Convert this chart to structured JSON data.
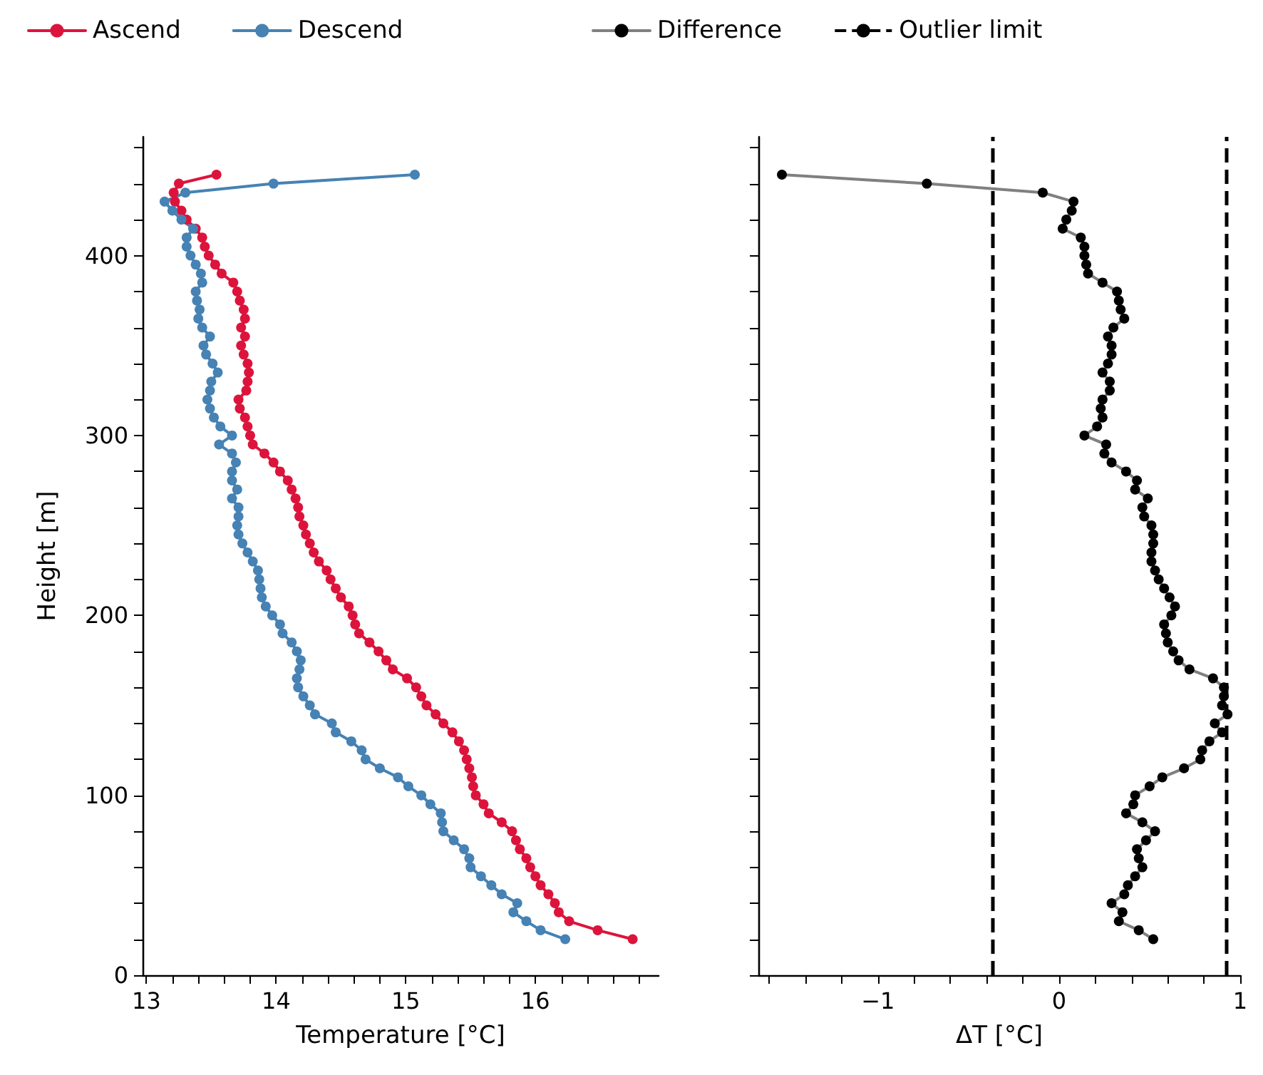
{
  "chart_data": [
    {
      "type": "line",
      "xlabel": "Temperature [°C]",
      "ylabel": "Height [m]",
      "xlim": [
        12.97,
        16.95
      ],
      "xticks": [
        13,
        {
          "value": 13.2,
          "label": null
        },
        {
          "value": 13.4,
          "label": null
        },
        {
          "value": 13.6,
          "label": null
        },
        {
          "value": 13.8,
          "label": null
        },
        14,
        {
          "value": 14.2,
          "label": null
        },
        {
          "value": 14.4,
          "label": null
        },
        {
          "value": 14.6,
          "label": null
        },
        {
          "value": 14.8,
          "label": null
        },
        15,
        {
          "value": 15.2,
          "label": null
        },
        {
          "value": 15.4,
          "label": null
        },
        {
          "value": 15.6,
          "label": null
        },
        {
          "value": 15.8,
          "label": null
        },
        16,
        {
          "value": 16.2,
          "label": null
        },
        {
          "value": 16.4,
          "label": null
        },
        {
          "value": 16.6,
          "label": null
        },
        {
          "value": 16.8,
          "label": null
        }
      ],
      "ylim": [
        0,
        466
      ],
      "yticks": [
        0,
        {
          "value": 20,
          "label": null
        },
        {
          "value": 40,
          "label": null
        },
        {
          "value": 60,
          "label": null
        },
        {
          "value": 80,
          "label": null
        },
        100,
        {
          "value": 120,
          "label": null
        },
        {
          "value": 140,
          "label": null
        },
        {
          "value": 160,
          "label": null
        },
        {
          "value": 180,
          "label": null
        },
        200,
        {
          "value": 220,
          "label": null
        },
        {
          "value": 240,
          "label": null
        },
        {
          "value": 260,
          "label": null
        },
        {
          "value": 280,
          "label": null
        },
        300,
        {
          "value": 320,
          "label": null
        },
        {
          "value": 340,
          "label": null
        },
        {
          "value": 360,
          "label": null
        },
        {
          "value": 380,
          "label": null
        },
        400,
        {
          "value": 420,
          "label": null
        },
        {
          "value": 440,
          "label": null
        },
        {
          "value": 460,
          "label": null
        }
      ],
      "legend": "top",
      "marker": "circle",
      "line_style": "solid",
      "series": [
        {
          "name": "Ascend",
          "color": "#dc143c",
          "x": [
            13.54,
            13.25,
            13.21,
            13.22,
            13.27,
            13.31,
            13.38,
            13.43,
            13.45,
            13.48,
            13.53,
            13.58,
            13.67,
            13.7,
            13.72,
            13.75,
            13.76,
            13.73,
            13.76,
            13.73,
            13.75,
            13.78,
            13.79,
            13.78,
            13.77,
            13.71,
            13.72,
            13.76,
            13.78,
            13.8,
            13.82,
            13.91,
            13.98,
            14.03,
            14.09,
            14.12,
            14.15,
            14.17,
            14.18,
            14.21,
            14.23,
            14.26,
            14.29,
            14.33,
            14.39,
            14.42,
            14.46,
            14.5,
            14.56,
            14.59,
            14.61,
            14.64,
            14.72,
            14.79,
            14.85,
            14.9,
            15.01,
            15.08,
            15.12,
            15.16,
            15.23,
            15.29,
            15.36,
            15.41,
            15.45,
            15.47,
            15.49,
            15.51,
            15.52,
            15.54,
            15.6,
            15.64,
            15.74,
            15.82,
            15.85,
            15.88,
            15.93,
            15.96,
            16.0,
            16.04,
            16.1,
            16.15,
            16.18,
            16.26,
            16.48,
            16.75
          ],
          "values": [
            445,
            440,
            435,
            430,
            425,
            420,
            415,
            410,
            405,
            400,
            395,
            390,
            385,
            380,
            375,
            370,
            365,
            360,
            355,
            350,
            345,
            340,
            335,
            330,
            325,
            320,
            315,
            310,
            305,
            300,
            295,
            290,
            285,
            280,
            275,
            270,
            265,
            260,
            255,
            250,
            245,
            240,
            235,
            230,
            225,
            220,
            215,
            210,
            205,
            200,
            195,
            190,
            185,
            180,
            175,
            170,
            165,
            160,
            155,
            150,
            145,
            140,
            135,
            130,
            125,
            120,
            115,
            110,
            105,
            100,
            95,
            90,
            85,
            80,
            75,
            70,
            65,
            60,
            55,
            50,
            45,
            40,
            35,
            30,
            25,
            20
          ]
        },
        {
          "name": "Descend",
          "color": "#4682b4",
          "x": [
            15.07,
            13.98,
            13.3,
            13.14,
            13.2,
            13.27,
            13.36,
            13.31,
            13.31,
            13.34,
            13.38,
            13.42,
            13.43,
            13.38,
            13.39,
            13.41,
            13.4,
            13.43,
            13.49,
            13.44,
            13.46,
            13.51,
            13.55,
            13.5,
            13.49,
            13.47,
            13.49,
            13.52,
            13.57,
            13.66,
            13.56,
            13.66,
            13.69,
            13.66,
            13.66,
            13.7,
            13.66,
            13.71,
            13.71,
            13.7,
            13.71,
            13.74,
            13.78,
            13.82,
            13.86,
            13.87,
            13.88,
            13.89,
            13.92,
            13.97,
            14.03,
            14.05,
            14.12,
            14.16,
            14.19,
            14.18,
            14.16,
            14.17,
            14.21,
            14.26,
            14.3,
            14.43,
            14.46,
            14.58,
            14.66,
            14.69,
            14.8,
            14.94,
            15.02,
            15.12,
            15.19,
            15.27,
            15.28,
            15.29,
            15.37,
            15.45,
            15.49,
            15.5,
            15.58,
            15.66,
            15.74,
            15.86,
            15.83,
            15.93,
            16.04,
            16.23
          ],
          "values": [
            445,
            440,
            435,
            430,
            425,
            420,
            415,
            410,
            405,
            400,
            395,
            390,
            385,
            380,
            375,
            370,
            365,
            360,
            355,
            350,
            345,
            340,
            335,
            330,
            325,
            320,
            315,
            310,
            305,
            300,
            295,
            290,
            285,
            280,
            275,
            270,
            265,
            260,
            255,
            250,
            245,
            240,
            235,
            230,
            225,
            220,
            215,
            210,
            205,
            200,
            195,
            190,
            185,
            180,
            175,
            170,
            165,
            160,
            155,
            150,
            145,
            140,
            135,
            130,
            125,
            120,
            115,
            110,
            105,
            100,
            95,
            90,
            85,
            80,
            75,
            70,
            65,
            60,
            55,
            50,
            45,
            40,
            35,
            30,
            25,
            20
          ]
        }
      ]
    },
    {
      "type": "line",
      "xlabel": "ΔT [°C]",
      "xlim": [
        -1.66,
        1.0
      ],
      "xticks": [
        {
          "value": -1.6,
          "label": null
        },
        {
          "value": -1.4,
          "label": null
        },
        {
          "value": -1.2,
          "label": null
        },
        {
          "value": -1,
          "label": "−1"
        },
        {
          "value": -0.8,
          "label": null
        },
        {
          "value": -0.6,
          "label": null
        },
        {
          "value": -0.4,
          "label": null
        },
        {
          "value": -0.2,
          "label": null
        },
        0,
        {
          "value": 0.2,
          "label": null
        },
        {
          "value": 0.4,
          "label": null
        },
        {
          "value": 0.6,
          "label": null
        },
        {
          "value": 0.8,
          "label": null
        },
        1
      ],
      "ylim": [
        0,
        466
      ],
      "yticks": [
        0,
        {
          "value": 20,
          "label": null
        },
        {
          "value": 40,
          "label": null
        },
        {
          "value": 60,
          "label": null
        },
        {
          "value": 80,
          "label": null
        },
        100,
        {
          "value": 120,
          "label": null
        },
        {
          "value": 140,
          "label": null
        },
        {
          "value": 160,
          "label": null
        },
        {
          "value": 180,
          "label": null
        },
        200,
        {
          "value": 220,
          "label": null
        },
        {
          "value": 240,
          "label": null
        },
        {
          "value": 260,
          "label": null
        },
        {
          "value": 280,
          "label": null
        },
        300,
        {
          "value": 320,
          "label": null
        },
        {
          "value": 340,
          "label": null
        },
        {
          "value": 360,
          "label": null
        },
        {
          "value": 380,
          "label": null
        },
        400,
        {
          "value": 420,
          "label": null
        },
        {
          "value": 440,
          "label": null
        },
        {
          "value": 460,
          "label": null
        }
      ],
      "tick_labels": "x",
      "legend": "top",
      "marker": "circle",
      "line_style": "solid",
      "series": [
        {
          "name": "Difference",
          "color": "#808080",
          "colors": [
            "#000000",
            "#000000",
            "#000000",
            "#000000",
            "#000000",
            "#000000",
            "#000000",
            "#000000",
            "#000000",
            "#000000",
            "#000000",
            "#000000",
            "#000000",
            "#000000",
            "#000000",
            "#000000",
            "#000000",
            "#000000",
            "#000000",
            "#000000",
            "#000000",
            "#000000",
            "#000000",
            "#000000",
            "#000000",
            "#000000",
            "#000000",
            "#000000",
            "#000000",
            "#000000",
            "#000000",
            "#000000",
            "#000000",
            "#000000",
            "#000000",
            "#000000",
            "#000000",
            "#000000",
            "#000000",
            "#000000",
            "#000000",
            "#000000",
            "#000000",
            "#000000",
            "#000000",
            "#000000",
            "#000000",
            "#000000",
            "#000000",
            "#000000",
            "#000000",
            "#000000",
            "#000000",
            "#000000",
            "#000000",
            "#000000",
            "#000000",
            "#000000",
            "#000000",
            "#000000",
            "#000000",
            "#000000",
            "#000000",
            "#000000",
            "#000000",
            "#000000",
            "#000000",
            "#000000",
            "#000000",
            "#000000",
            "#000000",
            "#000000",
            "#000000",
            "#000000",
            "#000000",
            "#000000",
            "#000000",
            "#000000",
            "#000000",
            "#000000",
            "#000000",
            "#000000",
            "#000000",
            "#000000",
            "#000000",
            "#000000"
          ],
          "x": [
            -1.53,
            -0.73,
            -0.09,
            0.08,
            0.07,
            0.04,
            0.02,
            0.12,
            0.14,
            0.14,
            0.15,
            0.16,
            0.24,
            0.32,
            0.33,
            0.34,
            0.36,
            0.3,
            0.27,
            0.29,
            0.29,
            0.27,
            0.24,
            0.28,
            0.28,
            0.24,
            0.23,
            0.24,
            0.21,
            0.14,
            0.26,
            0.25,
            0.29,
            0.37,
            0.43,
            0.42,
            0.49,
            0.46,
            0.47,
            0.51,
            0.52,
            0.52,
            0.51,
            0.51,
            0.53,
            0.55,
            0.58,
            0.61,
            0.64,
            0.62,
            0.58,
            0.59,
            0.6,
            0.63,
            0.66,
            0.72,
            0.85,
            0.91,
            0.91,
            0.9,
            0.93,
            0.86,
            0.9,
            0.83,
            0.79,
            0.78,
            0.69,
            0.57,
            0.5,
            0.42,
            0.41,
            0.37,
            0.46,
            0.53,
            0.48,
            0.43,
            0.44,
            0.46,
            0.42,
            0.38,
            0.36,
            0.29,
            0.35,
            0.33,
            0.44,
            0.52
          ],
          "values": [
            445,
            440,
            435,
            430,
            425,
            420,
            415,
            410,
            405,
            400,
            395,
            390,
            385,
            380,
            375,
            370,
            365,
            360,
            355,
            350,
            345,
            340,
            335,
            330,
            325,
            320,
            315,
            310,
            305,
            300,
            295,
            290,
            285,
            280,
            275,
            270,
            265,
            260,
            255,
            250,
            245,
            240,
            235,
            230,
            225,
            220,
            215,
            210,
            205,
            200,
            195,
            190,
            185,
            180,
            175,
            170,
            165,
            160,
            155,
            150,
            145,
            140,
            135,
            130,
            125,
            120,
            115,
            110,
            105,
            100,
            95,
            90,
            85,
            80,
            75,
            70,
            65,
            60,
            55,
            50,
            45,
            40,
            35,
            30,
            25,
            20
          ]
        }
      ],
      "ref_lines": [
        {
          "axis": "x",
          "value": -0.37,
          "label": "Outlier limit",
          "color": "#000000",
          "line_style": "dashed"
        },
        {
          "axis": "x",
          "value": 0.92,
          "color": "#000000",
          "line_style": "dashed"
        }
      ]
    }
  ]
}
